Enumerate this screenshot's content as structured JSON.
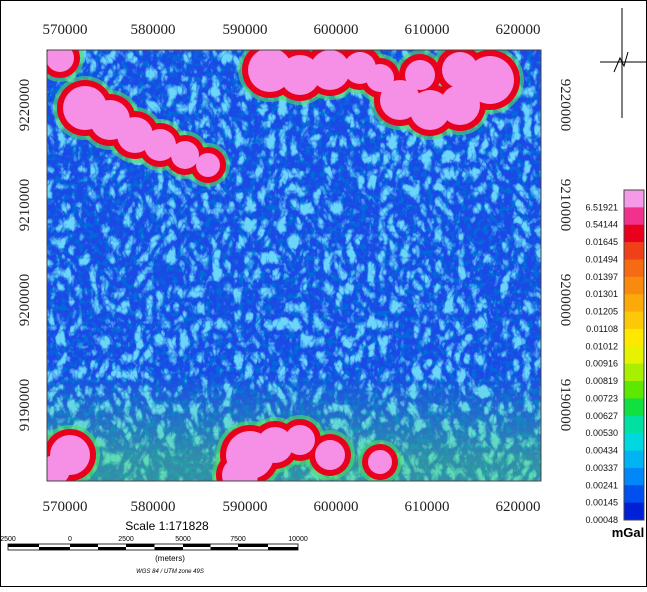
{
  "map": {
    "x_labels_top": [
      "570000",
      "580000",
      "590000",
      "600000",
      "610000",
      "620000"
    ],
    "x_labels_bottom": [
      "570000",
      "580000",
      "590000",
      "600000",
      "610000",
      "620000"
    ],
    "y_labels_left": [
      "9220000",
      "9210000",
      "9200000",
      "9190000"
    ],
    "y_labels_right": [
      "9220000",
      "9210000",
      "9200000",
      "9190000"
    ],
    "legend": {
      "labels": [
        "6.51921",
        "0.54144",
        "0.01645",
        "0.01494",
        "0.01397",
        "0.01301",
        "0.01205",
        "0.01108",
        "0.01012",
        "0.00916",
        "0.00819",
        "0.00723",
        "0.00627",
        "0.00530",
        "0.00434",
        "0.00337",
        "0.00241",
        "0.00145",
        "0.00048"
      ],
      "colors": [
        "#f59ae6",
        "#f0328c",
        "#e8001c",
        "#f0401a",
        "#f56a12",
        "#f88a0e",
        "#fbaa0a",
        "#fdc808",
        "#ffe800",
        "#e6f200",
        "#a8f000",
        "#5ee800",
        "#10e040",
        "#00e0a0",
        "#00d8e0",
        "#00b4f4",
        "#0088f8",
        "#0050f0",
        "#0020d8"
      ],
      "unit": "mGal"
    },
    "scale": {
      "text": "Scale 1:171828",
      "bar_labels": [
        "2500",
        "0",
        "2500",
        "5000",
        "7500",
        "10000"
      ],
      "units": "(meters)",
      "projection": "WGS 84 / UTM zone 49S"
    }
  }
}
